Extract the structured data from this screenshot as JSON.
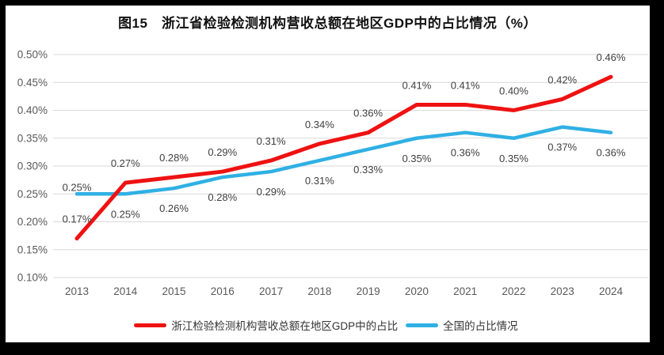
{
  "title": "图15　浙江省检验检测机构营收总额在地区GDP中的占比情况（%）",
  "colors": {
    "zhejiang_red": "#ee1212",
    "national_blue": "#2fb0e4",
    "gridline": "#d9d9d9",
    "axis_text": "#595959",
    "data_label_text": "#404040",
    "frame_border": "#000000"
  },
  "chart_data": {
    "type": "line",
    "x": [
      "2013",
      "2014",
      "2015",
      "2016",
      "2017",
      "2018",
      "2019",
      "2020",
      "2021",
      "2022",
      "2023",
      "2024"
    ],
    "y_ticks": [
      "0.50%",
      "0.45%",
      "0.40%",
      "0.35%",
      "0.30%",
      "0.25%",
      "0.20%",
      "0.15%",
      "0.10%"
    ],
    "ylim": [
      0.1,
      0.5
    ],
    "grid": "horizontal-only",
    "legend_position": "bottom",
    "title": "图15　浙江省检验检测机构营收总额在地区GDP中的占比情况（%）",
    "series": [
      {
        "id": "zhejiang",
        "name": "浙江检验检测机构营收总额在地区GDP中的占比",
        "color": "#ee1212",
        "values": [
          0.17,
          0.27,
          0.28,
          0.29,
          0.31,
          0.34,
          0.36,
          0.41,
          0.41,
          0.4,
          0.42,
          0.46
        ],
        "labels": [
          "0.17%",
          "0.27%",
          "0.28%",
          "0.29%",
          "0.31%",
          "0.34%",
          "0.36%",
          "0.41%",
          "0.41%",
          "0.40%",
          "0.42%",
          "0.46%"
        ],
        "label_side_default": "above"
      },
      {
        "id": "national",
        "name": "全国的占比情况",
        "color": "#2fb0e4",
        "values": [
          0.25,
          0.25,
          0.26,
          0.28,
          0.29,
          0.31,
          0.33,
          0.35,
          0.36,
          0.35,
          0.37,
          0.36
        ],
        "labels": [
          "0.25%",
          "0.25%",
          "0.26%",
          "0.28%",
          "0.29%",
          "0.31%",
          "0.33%",
          "0.35%",
          "0.36%",
          "0.35%",
          "0.37%",
          "0.36%"
        ],
        "label_side_default": "below",
        "label_sides": [
          "above-close",
          "below",
          "below",
          "below",
          "below",
          "below",
          "below",
          "below",
          "below",
          "below",
          "below",
          "below"
        ]
      }
    ]
  }
}
